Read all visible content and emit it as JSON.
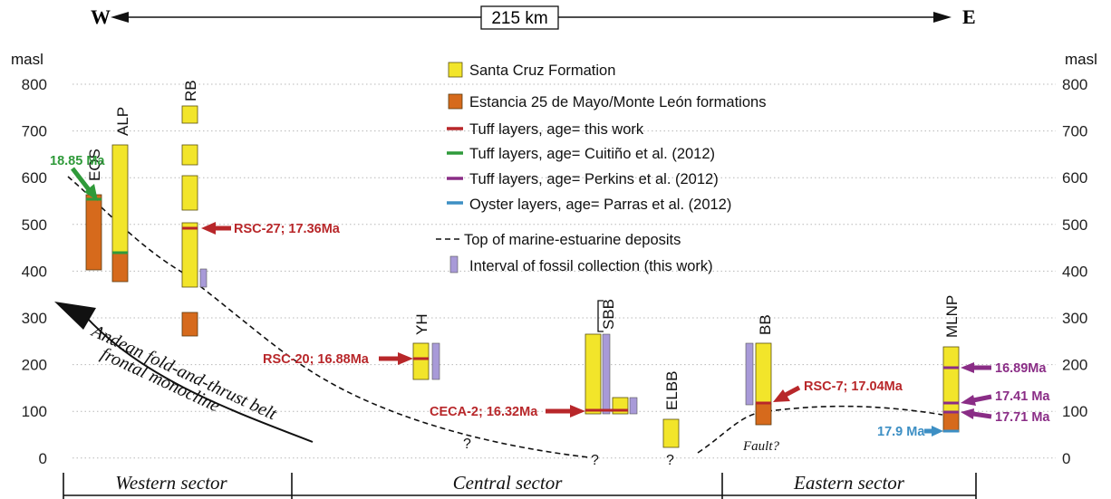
{
  "header": {
    "west": "W",
    "east": "E",
    "distance": "215 km"
  },
  "axis": {
    "unit": "masl",
    "ticks": [
      "800",
      "700",
      "600",
      "500",
      "400",
      "300",
      "200",
      "100",
      "0"
    ]
  },
  "legend": {
    "items": [
      {
        "label": "Santa Cruz Formation",
        "color": "#f2e52a"
      },
      {
        "label": "Estancia 25 de Mayo/Monte León formations",
        "color": "#d66a1c"
      },
      {
        "label": "Tuff layers, age= this work",
        "color": "#b8272a"
      },
      {
        "label": "Tuff layers, age= Cuitiño et al. (2012)",
        "color": "#2f9a3a"
      },
      {
        "label": "Tuff layers, age= Perkins et al. (2012)",
        "color": "#8a2d86"
      },
      {
        "label": "Oyster layers, age= Parras et al. (2012)",
        "color": "#3d8fc4"
      },
      {
        "label": "Top of marine-estuarine deposits",
        "color": "#111111"
      },
      {
        "label": "Interval of fossil collection (this work)",
        "color": "#a89ad8"
      }
    ]
  },
  "sections": {
    "eqs": "EQS",
    "alp": "ALP",
    "rb": "RB",
    "yh": "YH",
    "sbb": "SBB",
    "elbb": "ELBB",
    "bb": "BB",
    "mlnp": "MLNP"
  },
  "ages": {
    "eqs": "18.85 Ma",
    "rb": "RSC-27; 17.36Ma",
    "yh": "RSC-20; 16.88Ma",
    "sbb": "CECA-2; 16.32Ma",
    "bb": "RSC-7; 17.04Ma",
    "mlnp_1": "16.89Ma",
    "mlnp_2": "17.41 Ma",
    "mlnp_3": "17.71 Ma",
    "mlnp_oyster": "17.9 Ma"
  },
  "annotations": {
    "thrust_1": "Andean fold-and-thrust belt",
    "thrust_2": "frontal monocline",
    "fault": "Fault?",
    "q1": "?",
    "q2": "?",
    "q3": "?"
  },
  "sectors": {
    "western": "Western sector",
    "central": "Central sector",
    "eastern": "Eastern sector"
  }
}
